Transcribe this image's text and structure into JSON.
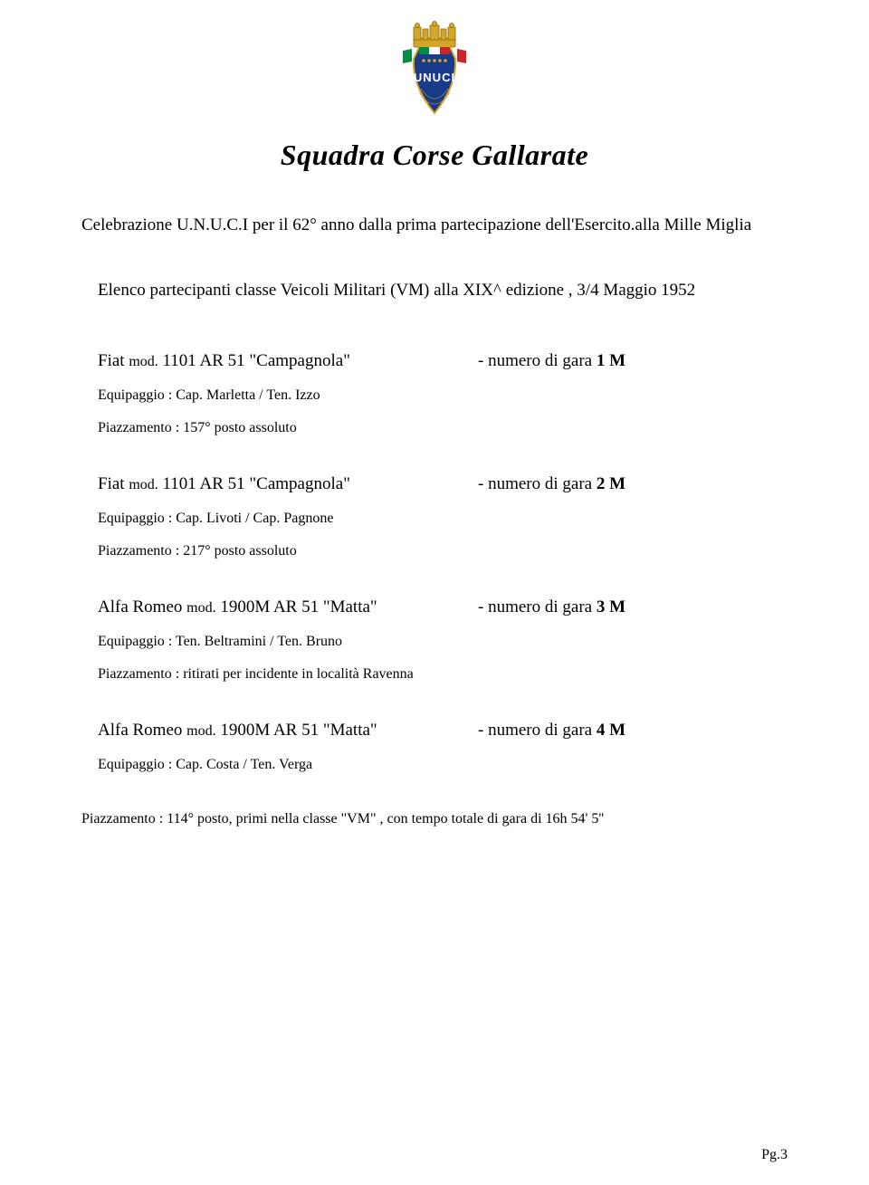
{
  "title": "Squadra Corse Gallarate",
  "subtitle": "Celebrazione U.N.U.C.I per il 62° anno dalla prima partecipazione dell'Esercito.alla Mille Miglia",
  "participants_heading": "Elenco partecipanti classe Veicoli Militari (VM) alla XIX^ edizione , 3/4 Maggio 1952",
  "entries": [
    {
      "vehicle_prefix": "Fiat ",
      "vehicle_mod": "mod.",
      "vehicle_name": " 1101 AR 51 \"Campagnola\"",
      "race_label": "- numero di gara  ",
      "race_num": "1 M",
      "crew": "Equipaggio : Cap. Marletta / Ten. Izzo",
      "placement": "Piazzamento : 157° posto assoluto"
    },
    {
      "vehicle_prefix": "Fiat ",
      "vehicle_mod": "mod.",
      "vehicle_name": " 1101 AR 51 \"Campagnola\"",
      "race_label": "- numero di gara  ",
      "race_num": "2 M",
      "crew": "Equipaggio : Cap. Livoti / Cap. Pagnone",
      "placement": "Piazzamento : 217° posto assoluto"
    },
    {
      "vehicle_prefix": "Alfa Romeo ",
      "vehicle_mod": "mod.",
      "vehicle_name": " 1900M AR 51 \"Matta\"",
      "race_label": "- numero di gara  ",
      "race_num": "3 M",
      "crew": "Equipaggio : Ten. Beltramini / Ten. Bruno",
      "placement": "Piazzamento : ritirati per incidente in località Ravenna"
    },
    {
      "vehicle_prefix": "Alfa Romeo ",
      "vehicle_mod": "mod.",
      "vehicle_name": " 1900M AR 51 \"Matta\"",
      "race_label": "- numero di gara  ",
      "race_num": "4 M",
      "crew": "Equipaggio : Cap. Costa / Ten. Verga",
      "placement": "Piazzamento : 114° posto, primi nella classe \"VM\" , con tempo totale di gara di 16h 54' 5''"
    }
  ],
  "page_num": "Pg.3",
  "logo_colors": {
    "crown": "#d4a628",
    "shield_top_white": "#ffffff",
    "shield_top_red": "#c8282b",
    "shield_top_green": "#008c45",
    "shield_main": "#1a3a8a",
    "shield_border": "#0d1f4a",
    "text": "#ffffff"
  }
}
